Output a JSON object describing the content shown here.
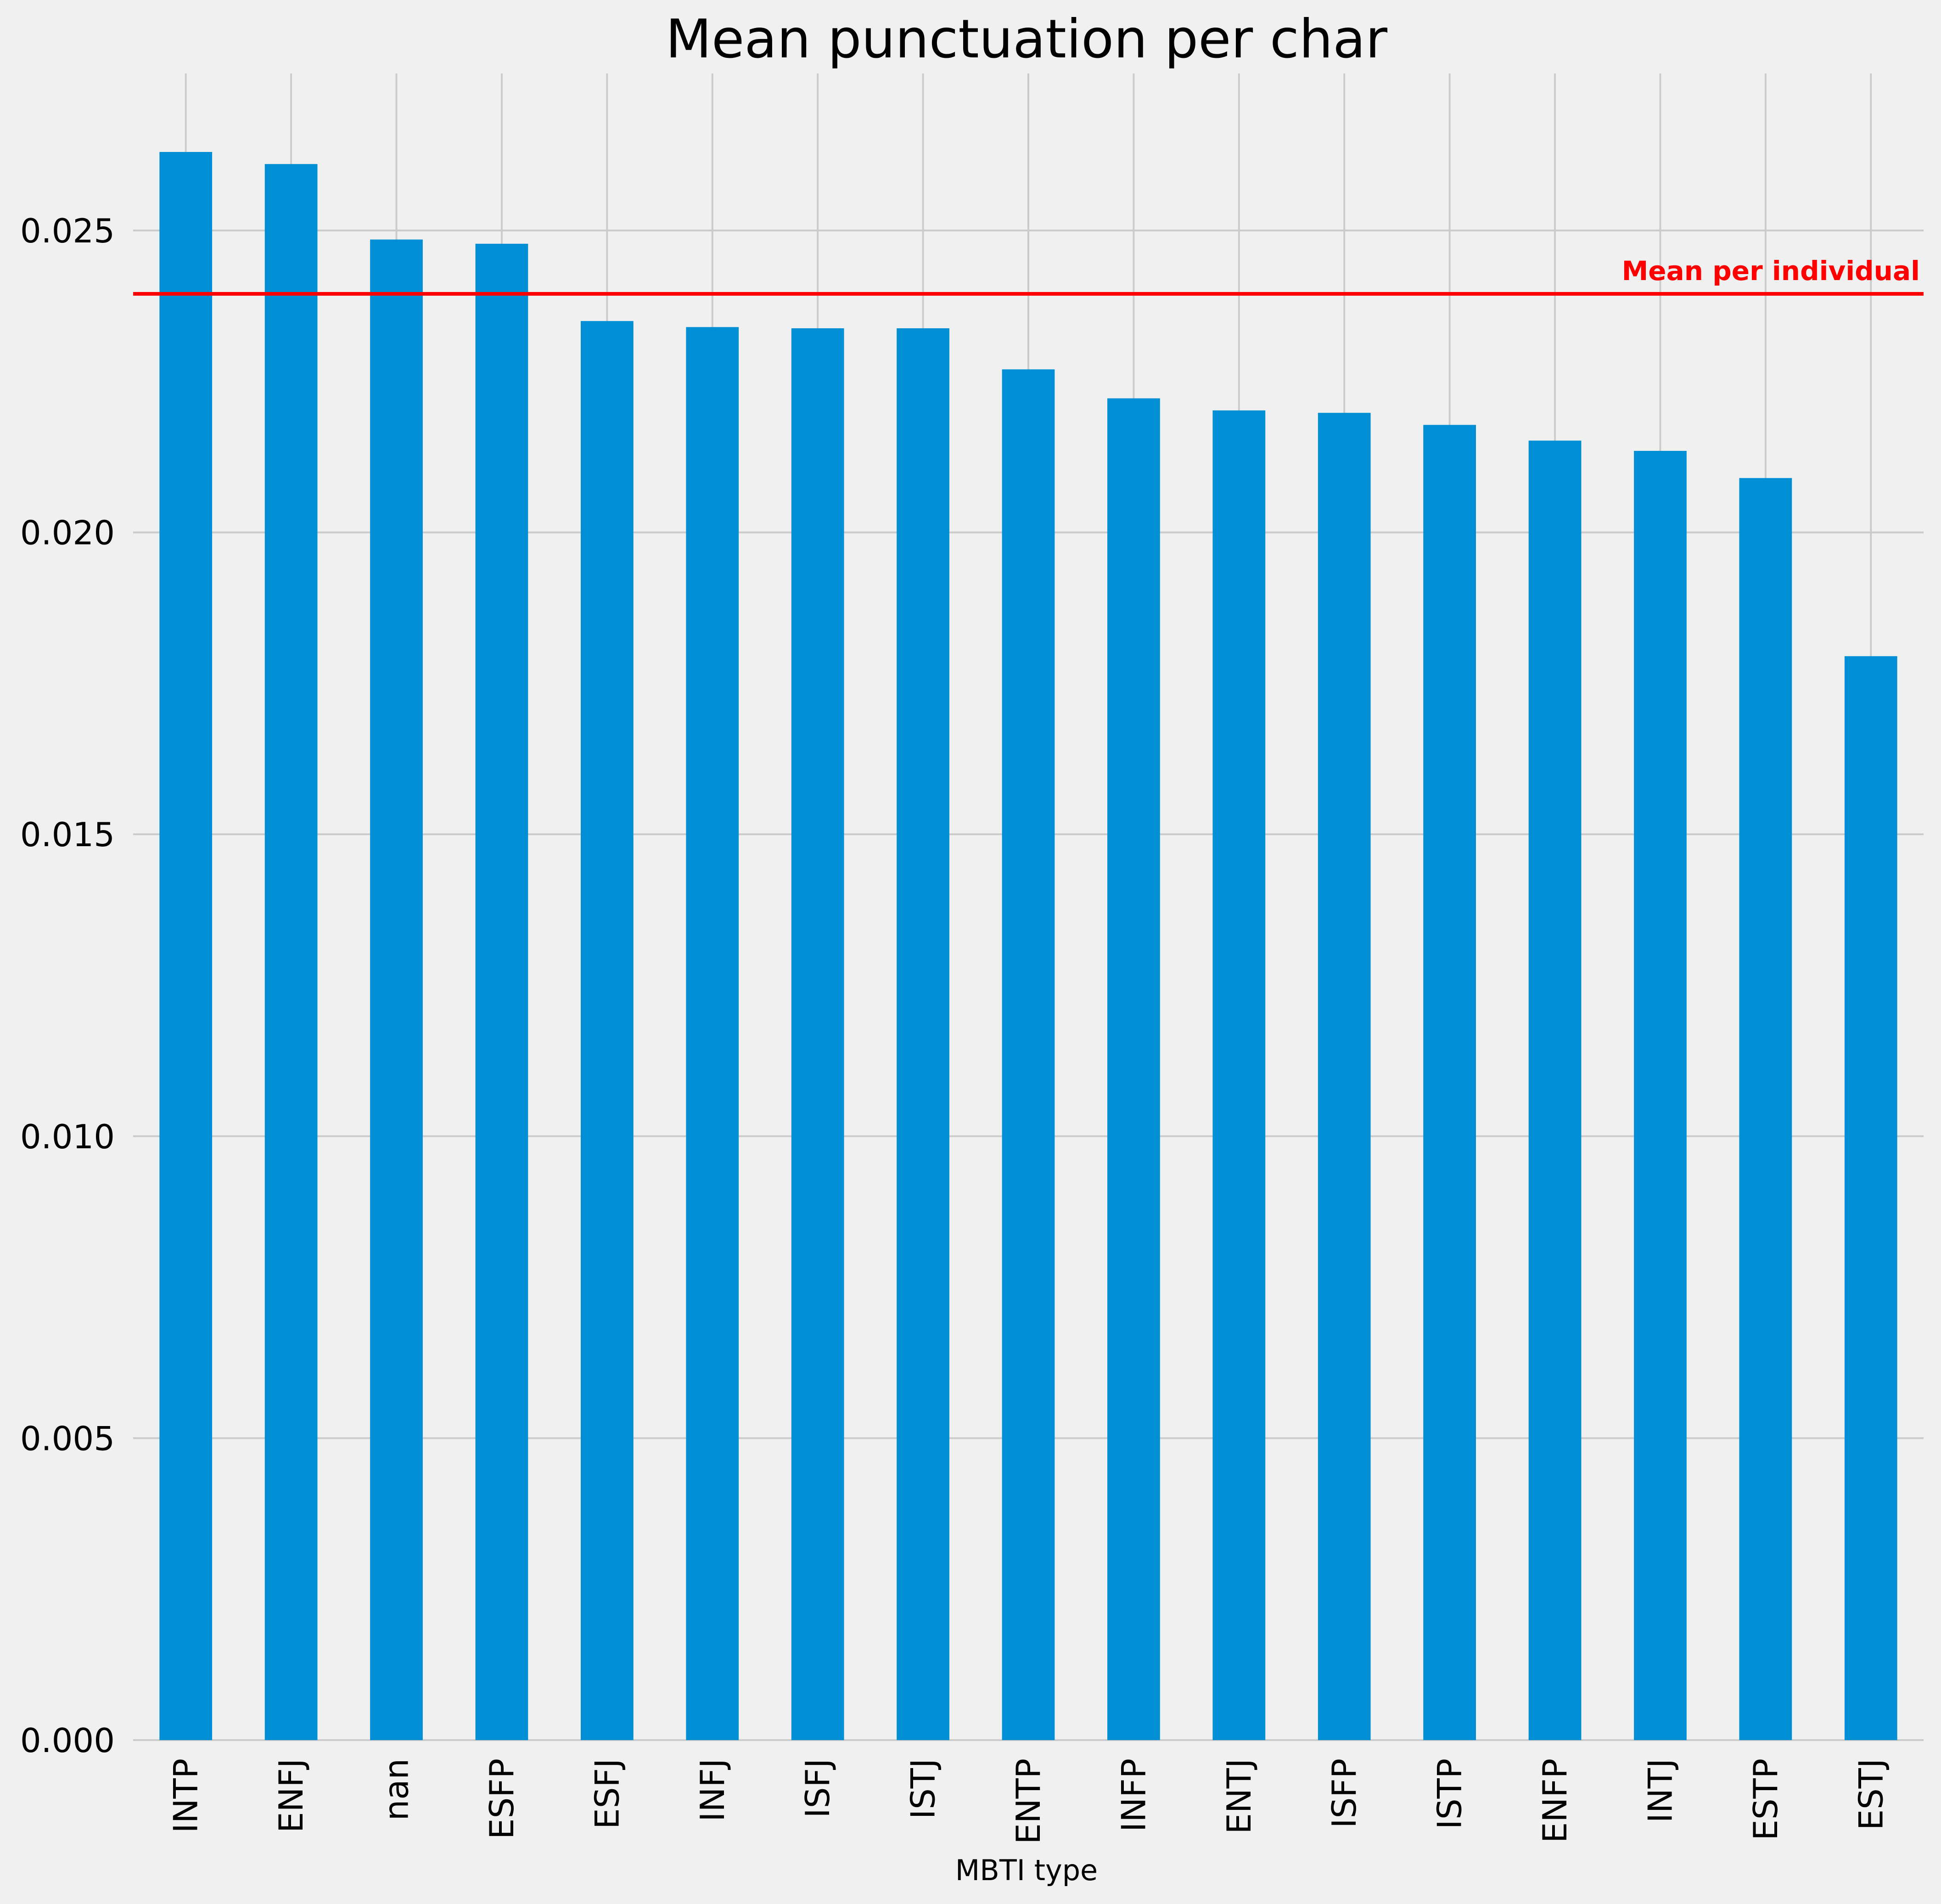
{
  "chart_data": {
    "type": "bar",
    "title": "Mean punctuation per char",
    "xlabel": "MBTI type",
    "ylabel": "",
    "categories": [
      "INTP",
      "ENFJ",
      "nan",
      "ESFP",
      "ESFJ",
      "INFJ",
      "ISFJ",
      "ISTJ",
      "ENTP",
      "INFP",
      "ENTJ",
      "ISFP",
      "ISTP",
      "ENFP",
      "INTJ",
      "ESTP",
      "ESTJ"
    ],
    "values": [
      0.0263,
      0.0261,
      0.02485,
      0.02478,
      0.0235,
      0.0234,
      0.02338,
      0.02338,
      0.0227,
      0.02222,
      0.02202,
      0.02198,
      0.02178,
      0.02152,
      0.02135,
      0.0209,
      0.01795
    ],
    "ylim": [
      0,
      0.0276
    ],
    "yticks": [
      "0.000",
      "0.005",
      "0.010",
      "0.015",
      "0.020",
      "0.025"
    ],
    "ytick_values": [
      0,
      0.005,
      0.01,
      0.015,
      0.02,
      0.025
    ],
    "grid": true,
    "reference_line": {
      "value": 0.02395,
      "label": "Mean per individual",
      "color": "#ff0000"
    },
    "colors": {
      "bar": "#008fd5",
      "background": "#f0f0f0",
      "grid": "#cbcbcb"
    }
  }
}
